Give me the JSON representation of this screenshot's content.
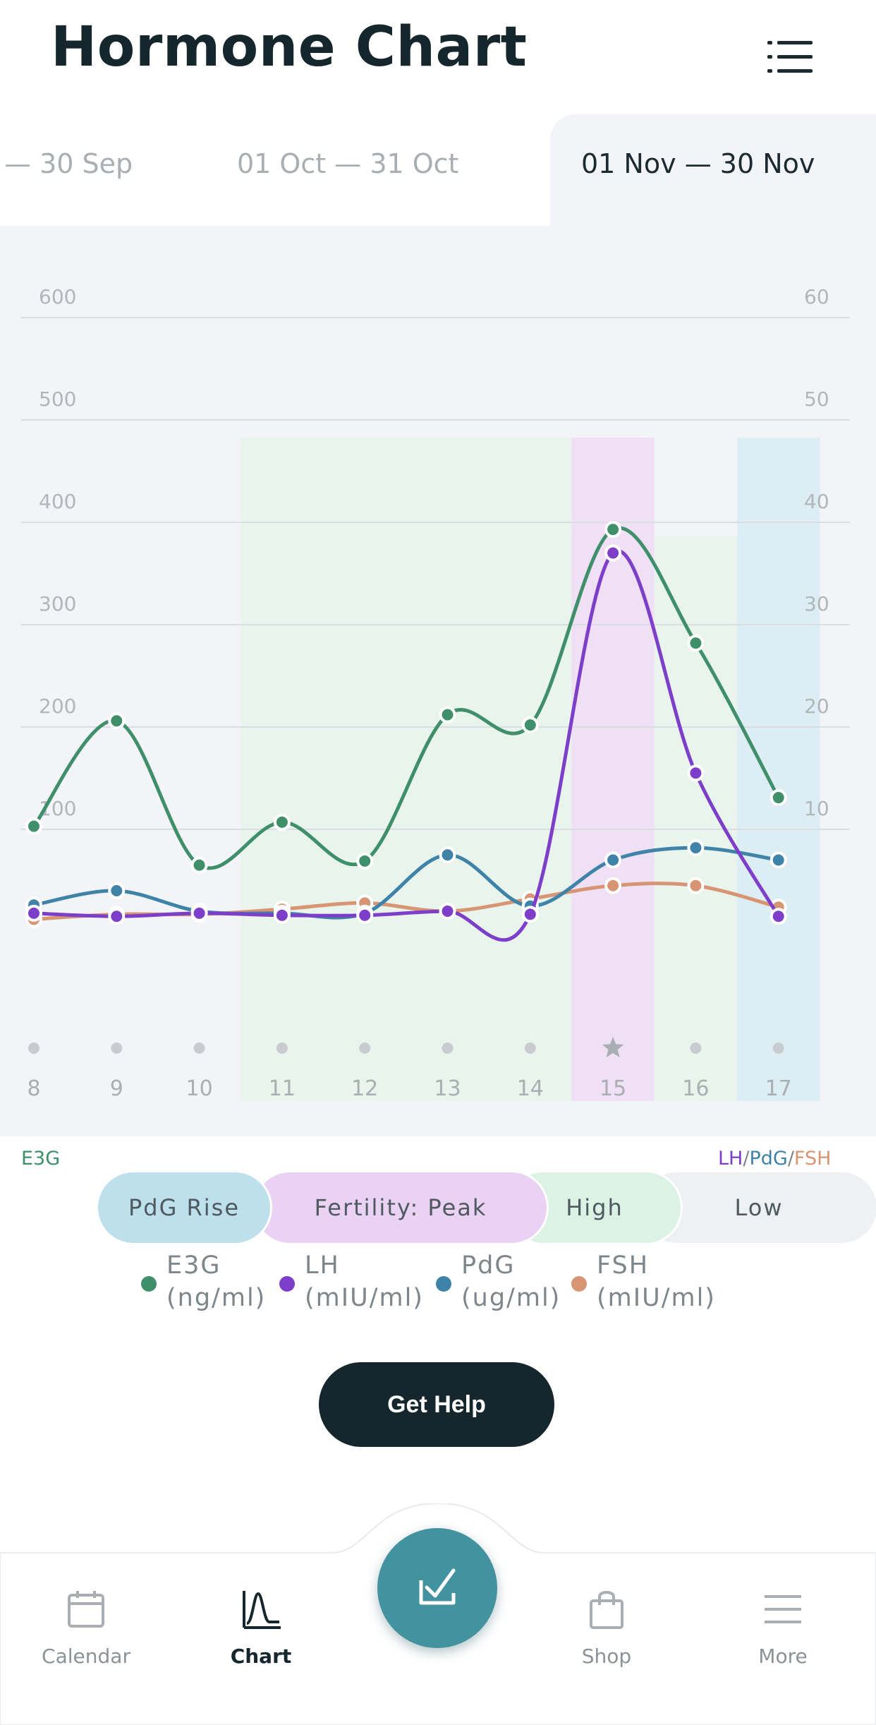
{
  "header": {
    "title": "Hormone Chart",
    "menu_icon": "list-icon"
  },
  "ranges": [
    {
      "start": "",
      "end": "30 Sep",
      "active": false
    },
    {
      "start": "01 Oct",
      "end": "31 Oct",
      "active": false
    },
    {
      "start": "01 Nov",
      "end": "30 Nov",
      "active": true
    }
  ],
  "chart_data": {
    "type": "line",
    "x": [
      8,
      9,
      10,
      11,
      12,
      13,
      14,
      15,
      16,
      17
    ],
    "x_tick_labels": [
      "8",
      "9",
      "10",
      "11",
      "12",
      "13",
      "14",
      "15",
      "16",
      "17"
    ],
    "y_left_label": "E3G",
    "y_right_label_parts": [
      "LH",
      "/",
      "PdG",
      "/",
      "FSH"
    ],
    "y_left_range": [
      0,
      600
    ],
    "y_right_range": [
      0,
      60
    ],
    "y_left_ticks": [
      "100",
      "200",
      "300",
      "400",
      "500",
      "600"
    ],
    "y_right_ticks": [
      "10",
      "20",
      "30",
      "40",
      "50",
      "60"
    ],
    "grid": true,
    "peak_day": 15,
    "series": [
      {
        "name": "E3G",
        "axis": "left",
        "color": "#3f8f6b",
        "values": [
          103,
          206,
          65,
          107,
          69,
          212,
          202,
          393,
          282,
          131
        ]
      },
      {
        "name": "LH",
        "axis": "right",
        "color": "#7d3ec9",
        "values": [
          1.8,
          1.5,
          1.8,
          1.6,
          1.6,
          2.0,
          1.7,
          37,
          15.5,
          1.5
        ]
      },
      {
        "name": "PdG",
        "axis": "right",
        "color": "#3f83a8",
        "values": [
          2.6,
          4.0,
          2.0,
          1.8,
          1.8,
          7.5,
          2.5,
          7.0,
          8.2,
          7.0
        ]
      },
      {
        "name": "FSH",
        "axis": "right",
        "color": "#d89573",
        "values": [
          1.2,
          1.7,
          1.7,
          2.2,
          2.8,
          2.0,
          3.2,
          4.5,
          4.5,
          2.4
        ]
      }
    ],
    "fertility_bands": [
      {
        "from": 8,
        "to": 10,
        "level": "Low"
      },
      {
        "from": 11,
        "to": 14,
        "level": "High"
      },
      {
        "from": 15,
        "to": 15,
        "level": "Fertility: Peak"
      },
      {
        "from": 16,
        "to": 16,
        "level": "High"
      },
      {
        "from": 17,
        "to": 17,
        "level": "PdG Rise"
      }
    ]
  },
  "fertility_legend": [
    {
      "label": "PdG Rise",
      "color": "#bde0ec"
    },
    {
      "label": "Fertility: Peak",
      "color": "#ead2f4"
    },
    {
      "label": "High",
      "color": "#dcf2e4"
    },
    {
      "label": "Low",
      "color": "#eef0f3"
    }
  ],
  "legend": [
    {
      "name": "E3G",
      "unit": "(ng/ml)",
      "color": "#3f8f6b"
    },
    {
      "name": "LH",
      "unit": "(mIU/ml)",
      "color": "#7d3ec9"
    },
    {
      "name": "PdG",
      "unit": "(ug/ml)",
      "color": "#3f83a8"
    },
    {
      "name": "FSH",
      "unit": "(mIU/ml)",
      "color": "#d89573"
    }
  ],
  "help_button": "Get Help",
  "nav": [
    {
      "label": "Calendar",
      "icon": "calendar-icon",
      "active": false
    },
    {
      "label": "Chart",
      "icon": "chart-icon",
      "active": true
    },
    {
      "label": "Shop",
      "icon": "shopping-bag-icon",
      "active": false
    },
    {
      "label": "More",
      "icon": "menu-icon",
      "active": false
    }
  ],
  "fab_icon": "test-check-icon"
}
